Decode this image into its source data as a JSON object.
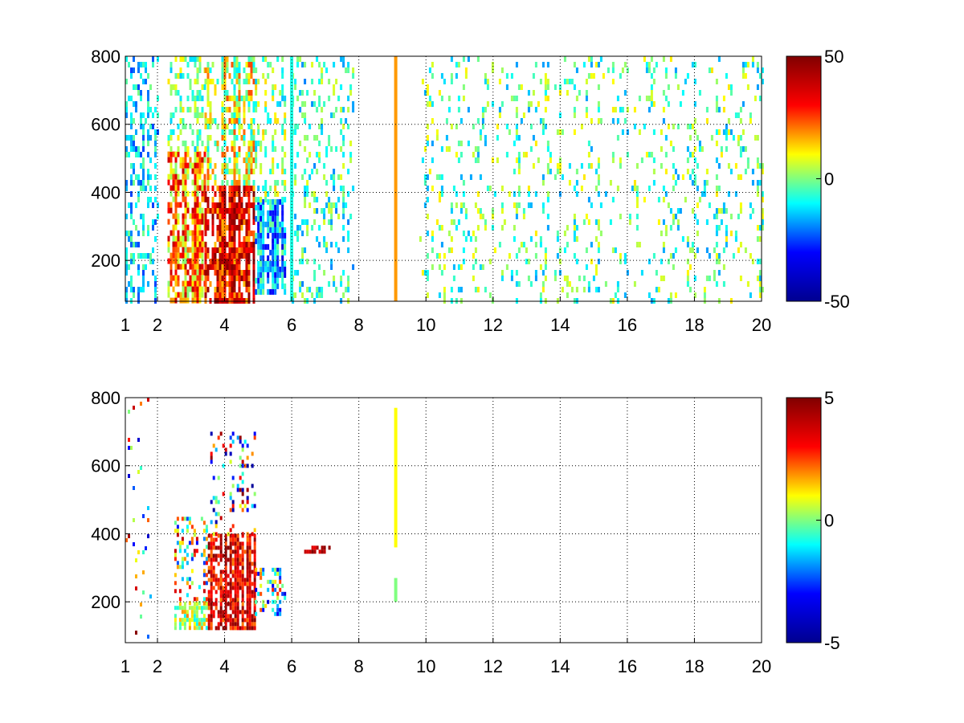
{
  "figure": {
    "background": "#ffffff",
    "colormap": "jet",
    "colormap_stops": [
      "#00008f",
      "#0000ff",
      "#00ffff",
      "#ffff00",
      "#ff0000",
      "#800000"
    ]
  },
  "chart_data": [
    {
      "type": "heatmap",
      "title": "",
      "xlabel": "",
      "ylabel": "",
      "x_breaks": [
        1,
        2,
        4,
        6,
        8,
        10,
        12,
        14,
        16,
        18,
        20
      ],
      "xlim": [
        1,
        20
      ],
      "ylim": [
        80,
        800
      ],
      "x_ticks": [
        "1",
        "2",
        "4",
        "6",
        "8",
        "10",
        "12",
        "14",
        "16",
        "18",
        "20"
      ],
      "y_ticks": [
        200,
        400,
        600,
        800
      ],
      "y_tick_labels": [
        "200",
        "400",
        "600",
        "800"
      ],
      "grid": true,
      "colorbar": {
        "min": -50,
        "max": 50,
        "ticks": [
          50,
          0,
          -50
        ],
        "tick_labels": [
          "50",
          "0",
          "-50"
        ]
      },
      "regions": [
        {
          "x": [
            1.0,
            2.0
          ],
          "y": [
            80,
            800
          ],
          "level": [
            -25,
            0
          ],
          "density": 0.35
        },
        {
          "x": [
            2.3,
            3.4
          ],
          "y": [
            80,
            520
          ],
          "level": [
            0,
            40
          ],
          "density": 0.75
        },
        {
          "x": [
            2.3,
            3.4
          ],
          "y": [
            520,
            800
          ],
          "level": [
            -15,
            12
          ],
          "density": 0.35
        },
        {
          "x": [
            3.4,
            4.9
          ],
          "y": [
            80,
            420
          ],
          "level": [
            15,
            50
          ],
          "density": 0.85
        },
        {
          "x": [
            3.4,
            4.9
          ],
          "y": [
            420,
            800
          ],
          "level": [
            -12,
            25
          ],
          "density": 0.55
        },
        {
          "x": [
            4.9,
            5.8
          ],
          "y": [
            100,
            380
          ],
          "level": [
            -35,
            0
          ],
          "density": 0.8
        },
        {
          "x": [
            4.9,
            5.8
          ],
          "y": [
            380,
            800
          ],
          "level": [
            -15,
            15
          ],
          "density": 0.3
        },
        {
          "x": [
            6.0,
            7.8
          ],
          "y": [
            80,
            800
          ],
          "level": [
            -20,
            8
          ],
          "density": 0.22
        },
        {
          "x": [
            9.8,
            20.0
          ],
          "y": [
            80,
            800
          ],
          "level": [
            -18,
            12
          ],
          "density": 0.14
        }
      ],
      "lines": [
        {
          "x": 9.1,
          "y": [
            80,
            800
          ],
          "value": 18
        },
        {
          "x": 6.0,
          "y": [
            80,
            800
          ],
          "value": -8
        }
      ]
    },
    {
      "type": "heatmap",
      "title": "",
      "xlabel": "",
      "ylabel": "",
      "x_breaks": [
        1,
        2,
        4,
        6,
        8,
        10,
        12,
        14,
        16,
        18,
        20
      ],
      "xlim": [
        1,
        20
      ],
      "ylim": [
        80,
        800
      ],
      "x_ticks": [
        "1",
        "2",
        "4",
        "6",
        "8",
        "10",
        "12",
        "14",
        "16",
        "18",
        "20"
      ],
      "y_ticks": [
        200,
        400,
        600,
        800
      ],
      "y_tick_labels": [
        "200",
        "400",
        "600",
        "800"
      ],
      "grid": true,
      "colorbar": {
        "min": -5,
        "max": 5,
        "ticks": [
          5,
          0,
          -5
        ],
        "tick_labels": [
          "5",
          "0",
          "-5"
        ]
      },
      "regions": [
        {
          "x": [
            2.5,
            3.5
          ],
          "y": [
            120,
            200
          ],
          "level": [
            -1,
            2
          ],
          "density": 0.7
        },
        {
          "x": [
            2.5,
            3.5
          ],
          "y": [
            200,
            450
          ],
          "level": [
            -3,
            4
          ],
          "density": 0.25
        },
        {
          "x": [
            3.5,
            4.9
          ],
          "y": [
            120,
            400
          ],
          "level": [
            2,
            5
          ],
          "density": 0.75
        },
        {
          "x": [
            3.5,
            4.9
          ],
          "y": [
            400,
            700
          ],
          "level": [
            -5,
            5
          ],
          "density": 0.2
        },
        {
          "x": [
            4.9,
            5.8
          ],
          "y": [
            170,
            300
          ],
          "level": [
            -4,
            3
          ],
          "density": 0.4
        },
        {
          "x": [
            6.3,
            7.1
          ],
          "y": [
            345,
            365
          ],
          "level": [
            3,
            5
          ],
          "density": 0.7
        },
        {
          "x": [
            1.0,
            1.8
          ],
          "y": [
            100,
            800
          ],
          "level": [
            -4,
            5
          ],
          "density": 0.05
        }
      ],
      "lines": [
        {
          "x": 9.1,
          "y": [
            200,
            270
          ],
          "value": 0
        },
        {
          "x": 9.1,
          "y": [
            360,
            770
          ],
          "value": 1
        }
      ]
    }
  ]
}
